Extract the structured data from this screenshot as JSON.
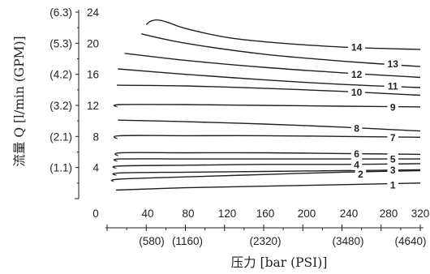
{
  "chart_data": {
    "type": "line",
    "title": "",
    "xlabel": "压力 [bar (PSI)]",
    "ylabel": "流量 Q [l/min (GPM)]",
    "xlim": [
      0,
      320
    ],
    "ylim": [
      0,
      24
    ],
    "x_ticks": [
      "0",
      "40",
      "80",
      "120",
      "160",
      "200",
      "240",
      "280",
      "320"
    ],
    "x_ticks_secondary": [
      "(580)",
      "(1160)",
      "(2320)",
      "(3480)",
      "(4640)"
    ],
    "y_ticks": [
      "4",
      "8",
      "12",
      "16",
      "20",
      "24"
    ],
    "y_ticks_secondary": [
      "(1.1)",
      "(2.1)",
      "(3.2)",
      "(4.2)",
      "(5.3)",
      "(6.3)"
    ],
    "grid": false,
    "series": [
      {
        "name": "1",
        "x": [
          9,
          80,
          160,
          240,
          320
        ],
        "y": [
          1.1,
          1.4,
          1.6,
          1.8,
          2.0
        ]
      },
      {
        "name": "2",
        "x": [
          6,
          12,
          80,
          160,
          240,
          320
        ],
        "y": [
          2.2,
          2.5,
          2.8,
          3.1,
          3.4,
          3.6
        ]
      },
      {
        "name": "3",
        "x": [
          9,
          12,
          80,
          160,
          240,
          320
        ],
        "y": [
          3.0,
          3.3,
          3.4,
          3.5,
          3.6,
          3.7
        ]
      },
      {
        "name": "4",
        "x": [
          9,
          12,
          80,
          160,
          240,
          320
        ],
        "y": [
          3.9,
          4.2,
          4.3,
          4.4,
          4.4,
          4.5
        ]
      },
      {
        "name": "5",
        "x": [
          10,
          13,
          80,
          160,
          240,
          320
        ],
        "y": [
          4.8,
          5.1,
          5.1,
          5.1,
          5.1,
          5.1
        ]
      },
      {
        "name": "6",
        "x": [
          11,
          14,
          80,
          160,
          240,
          320
        ],
        "y": [
          5.5,
          5.9,
          5.9,
          5.9,
          5.8,
          5.7
        ]
      },
      {
        "name": "7",
        "x": [
          10,
          13,
          80,
          160,
          240,
          320
        ],
        "y": [
          7.7,
          8.1,
          8.1,
          8.1,
          8.0,
          7.9
        ]
      },
      {
        "name": "8",
        "x": [
          11,
          80,
          160,
          240,
          320
        ],
        "y": [
          10.1,
          9.9,
          9.6,
          9.2,
          8.7
        ]
      },
      {
        "name": "9",
        "x": [
          10,
          13,
          80,
          160,
          240,
          320
        ],
        "y": [
          11.8,
          12.1,
          12.1,
          12.0,
          11.9,
          11.8
        ]
      },
      {
        "name": "10",
        "x": [
          10,
          80,
          160,
          240,
          320
        ],
        "y": [
          14.6,
          14.5,
          14.2,
          13.8,
          13.3
        ]
      },
      {
        "name": "11",
        "x": [
          11,
          80,
          160,
          240,
          320
        ],
        "y": [
          16.7,
          16.0,
          15.3,
          14.7,
          14.3
        ]
      },
      {
        "name": "12",
        "x": [
          18,
          80,
          160,
          240,
          320
        ],
        "y": [
          18.7,
          17.8,
          16.9,
          16.2,
          15.6
        ]
      },
      {
        "name": "13",
        "x": [
          35,
          80,
          160,
          240,
          320
        ],
        "y": [
          21.2,
          20.0,
          18.6,
          17.7,
          17.0
        ]
      },
      {
        "name": "14",
        "x": [
          40,
          44,
          50,
          56,
          64,
          80,
          120,
          160,
          240,
          320
        ],
        "y": [
          22.4,
          22.8,
          23.0,
          22.9,
          22.6,
          21.9,
          20.8,
          20.2,
          19.5,
          19.2
        ]
      }
    ],
    "curve_labels": [
      {
        "text": "1",
        "x": 292,
        "y": 1.8
      },
      {
        "text": "2",
        "x": 259,
        "y": 3.2
      },
      {
        "text": "3",
        "x": 292,
        "y": 3.7
      },
      {
        "text": "4",
        "x": 255,
        "y": 4.4
      },
      {
        "text": "5",
        "x": 292,
        "y": 5.1
      },
      {
        "text": "6",
        "x": 255,
        "y": 5.8
      },
      {
        "text": "7",
        "x": 292,
        "y": 7.9
      },
      {
        "text": "8",
        "x": 255,
        "y": 9.1
      },
      {
        "text": "9",
        "x": 292,
        "y": 11.8
      },
      {
        "text": "10",
        "x": 255,
        "y": 13.7
      },
      {
        "text": "11",
        "x": 292,
        "y": 14.5
      },
      {
        "text": "12",
        "x": 255,
        "y": 16.0
      },
      {
        "text": "13",
        "x": 292,
        "y": 17.4
      },
      {
        "text": "14",
        "x": 255,
        "y": 19.5
      }
    ]
  }
}
